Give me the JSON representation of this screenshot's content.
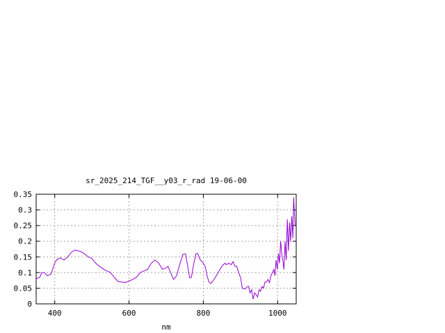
{
  "chart_data": {
    "type": "line",
    "title": "sr_2025_214_TGF__y03_r_rad 19-06-00",
    "xlabel": "nm",
    "ylabel": "",
    "xlim": [
      350,
      1050
    ],
    "ylim": [
      0,
      0.35
    ],
    "x_ticks": [
      400,
      600,
      800,
      1000
    ],
    "x_tick_labels": [
      "400",
      "600",
      "800",
      "1000"
    ],
    "y_ticks": [
      0,
      0.05,
      0.1,
      0.15,
      0.2,
      0.25,
      0.3,
      0.35
    ],
    "y_tick_labels": [
      "0",
      "0.05",
      "0.1",
      "0.15",
      "0.2",
      "0.25",
      "0.3",
      "0.35"
    ],
    "grid": true,
    "legend": "none",
    "colors": {
      "line": "#9400d3",
      "grid": "#a0a0a0",
      "axes": "#000000"
    },
    "series": [
      {
        "points": [
          [
            350,
            0.08
          ],
          [
            360,
            0.085
          ],
          [
            365,
            0.1
          ],
          [
            372,
            0.1
          ],
          [
            380,
            0.09
          ],
          [
            390,
            0.095
          ],
          [
            400,
            0.13
          ],
          [
            405,
            0.14
          ],
          [
            415,
            0.147
          ],
          [
            425,
            0.14
          ],
          [
            435,
            0.15
          ],
          [
            445,
            0.165
          ],
          [
            455,
            0.172
          ],
          [
            470,
            0.167
          ],
          [
            480,
            0.16
          ],
          [
            490,
            0.15
          ],
          [
            500,
            0.145
          ],
          [
            510,
            0.13
          ],
          [
            520,
            0.12
          ],
          [
            535,
            0.108
          ],
          [
            550,
            0.1
          ],
          [
            560,
            0.085
          ],
          [
            570,
            0.072
          ],
          [
            580,
            0.07
          ],
          [
            590,
            0.068
          ],
          [
            600,
            0.073
          ],
          [
            610,
            0.078
          ],
          [
            620,
            0.085
          ],
          [
            630,
            0.1
          ],
          [
            640,
            0.105
          ],
          [
            650,
            0.11
          ],
          [
            660,
            0.13
          ],
          [
            670,
            0.14
          ],
          [
            680,
            0.13
          ],
          [
            690,
            0.11
          ],
          [
            700,
            0.115
          ],
          [
            705,
            0.12
          ],
          [
            710,
            0.105
          ],
          [
            720,
            0.078
          ],
          [
            728,
            0.09
          ],
          [
            735,
            0.12
          ],
          [
            745,
            0.158
          ],
          [
            752,
            0.16
          ],
          [
            758,
            0.12
          ],
          [
            763,
            0.083
          ],
          [
            768,
            0.085
          ],
          [
            773,
            0.12
          ],
          [
            780,
            0.16
          ],
          [
            785,
            0.16
          ],
          [
            792,
            0.14
          ],
          [
            800,
            0.13
          ],
          [
            805,
            0.12
          ],
          [
            810,
            0.09
          ],
          [
            815,
            0.07
          ],
          [
            820,
            0.065
          ],
          [
            830,
            0.08
          ],
          [
            840,
            0.1
          ],
          [
            850,
            0.12
          ],
          [
            858,
            0.13
          ],
          [
            862,
            0.125
          ],
          [
            868,
            0.13
          ],
          [
            875,
            0.125
          ],
          [
            880,
            0.135
          ],
          [
            885,
            0.12
          ],
          [
            890,
            0.12
          ],
          [
            895,
            0.1
          ],
          [
            900,
            0.085
          ],
          [
            905,
            0.05
          ],
          [
            912,
            0.047
          ],
          [
            918,
            0.055
          ],
          [
            922,
            0.056
          ],
          [
            926,
            0.035
          ],
          [
            930,
            0.045
          ],
          [
            934,
            0.015
          ],
          [
            938,
            0.035
          ],
          [
            942,
            0.03
          ],
          [
            946,
            0.022
          ],
          [
            950,
            0.045
          ],
          [
            954,
            0.04
          ],
          [
            958,
            0.055
          ],
          [
            962,
            0.05
          ],
          [
            966,
            0.07
          ],
          [
            970,
            0.07
          ],
          [
            974,
            0.078
          ],
          [
            978,
            0.068
          ],
          [
            982,
            0.09
          ],
          [
            986,
            0.1
          ],
          [
            990,
            0.11
          ],
          [
            993,
            0.09
          ],
          [
            996,
            0.14
          ],
          [
            999,
            0.11
          ],
          [
            1002,
            0.16
          ],
          [
            1005,
            0.13
          ],
          [
            1008,
            0.2
          ],
          [
            1011,
            0.16
          ],
          [
            1014,
            0.14
          ],
          [
            1017,
            0.11
          ],
          [
            1020,
            0.2
          ],
          [
            1023,
            0.14
          ],
          [
            1026,
            0.27
          ],
          [
            1029,
            0.17
          ],
          [
            1032,
            0.26
          ],
          [
            1035,
            0.2
          ],
          [
            1038,
            0.28
          ],
          [
            1041,
            0.21
          ],
          [
            1043,
            0.34
          ],
          [
            1045,
            0.3
          ],
          [
            1047,
            0.25
          ]
        ]
      }
    ]
  }
}
